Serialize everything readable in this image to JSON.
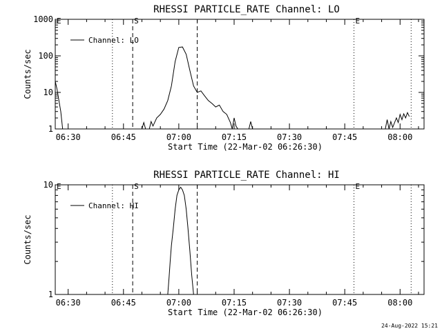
{
  "footer": {
    "date": "24-Aug-2022 15:21"
  },
  "chart_data": [
    {
      "type": "line",
      "title": "RHESSI PARTICLE_RATE Channel: LO",
      "xlabel": "Start Time (22-Mar-02 06:26:30)",
      "ylabel": "Counts/sec",
      "yscale": "log",
      "xlim": [
        "06:26:30",
        "08:06:30"
      ],
      "ylim": [
        1,
        1000
      ],
      "xticks": [
        "06:30",
        "06:45",
        "07:00",
        "07:15",
        "07:30",
        "07:45",
        "08:00"
      ],
      "yticks": [
        {
          "value": 1,
          "label": "1"
        },
        {
          "value": 10,
          "label": "10"
        },
        {
          "value": 100,
          "label": "100"
        },
        {
          "value": 1000,
          "label": "1000"
        }
      ],
      "legend": {
        "label": "Channel: LO",
        "position": "top-left"
      },
      "markers": [
        {
          "time": "06:42:00",
          "style": "dotted",
          "label": ""
        },
        {
          "time": "06:47:30",
          "style": "dashed",
          "label": "S"
        },
        {
          "time": "07:05:00",
          "style": "dashed",
          "label": ""
        },
        {
          "time": "07:47:30",
          "style": "dotted",
          "label": "E"
        },
        {
          "time": "08:03:00",
          "style": "dotted",
          "label": ""
        }
      ],
      "edge_labels": [
        {
          "time": "06:26:30",
          "label": "E"
        }
      ],
      "series": [
        {
          "color": "#000000",
          "points": [
            [
              "06:26:30",
              20
            ],
            [
              "06:27:00",
              12
            ],
            [
              "06:27:30",
              6
            ],
            [
              "06:28:00",
              3
            ],
            [
              "06:28:30",
              1
            ],
            [
              "06:50:00",
              1
            ],
            [
              "06:50:30",
              1.5
            ],
            [
              "06:51:00",
              1
            ],
            [
              "06:52:00",
              1
            ],
            [
              "06:52:30",
              1.6
            ],
            [
              "06:53:00",
              1.2
            ],
            [
              "06:54:00",
              2.0
            ],
            [
              "06:55:00",
              2.5
            ],
            [
              "06:56:00",
              3.5
            ],
            [
              "06:57:00",
              6
            ],
            [
              "06:58:00",
              15
            ],
            [
              "06:59:00",
              70
            ],
            [
              "07:00:00",
              170
            ],
            [
              "07:01:00",
              175
            ],
            [
              "07:02:00",
              110
            ],
            [
              "07:03:00",
              40
            ],
            [
              "07:04:00",
              15
            ],
            [
              "07:05:00",
              10
            ],
            [
              "07:06:00",
              11
            ],
            [
              "07:07:00",
              8
            ],
            [
              "07:08:00",
              6
            ],
            [
              "07:09:00",
              5
            ],
            [
              "07:10:00",
              4
            ],
            [
              "07:11:00",
              4.5
            ],
            [
              "07:12:00",
              3
            ],
            [
              "07:13:00",
              2.5
            ],
            [
              "07:14:00",
              1.5
            ],
            [
              "07:14:30",
              1
            ],
            [
              "07:15:00",
              2
            ],
            [
              "07:15:30",
              1.2
            ],
            [
              "07:16:00",
              1
            ],
            [
              "07:19:00",
              1
            ],
            [
              "07:19:30",
              1.6
            ],
            [
              "07:20:00",
              1
            ],
            [
              "07:56:00",
              1
            ],
            [
              "07:56:30",
              1.8
            ],
            [
              "07:57:00",
              1
            ],
            [
              "07:57:30",
              1.6
            ],
            [
              "07:58:00",
              1.1
            ],
            [
              "07:59:00",
              2.0
            ],
            [
              "07:59:30",
              1.5
            ],
            [
              "08:00:00",
              2.5
            ],
            [
              "08:00:30",
              1.8
            ],
            [
              "08:01:00",
              2.6
            ],
            [
              "08:01:30",
              2.0
            ],
            [
              "08:02:00",
              2.8
            ],
            [
              "08:02:30",
              2.2
            ]
          ]
        }
      ]
    },
    {
      "type": "line",
      "title": "RHESSI PARTICLE_RATE Channel: HI",
      "xlabel": "Start Time (22-Mar-02 06:26:30)",
      "ylabel": "Counts/sec",
      "yscale": "log",
      "xlim": [
        "06:26:30",
        "08:06:30"
      ],
      "ylim": [
        1,
        10
      ],
      "xticks": [
        "06:30",
        "06:45",
        "07:00",
        "07:15",
        "07:30",
        "07:45",
        "08:00"
      ],
      "yticks": [
        {
          "value": 1,
          "label": "1"
        },
        {
          "value": 10,
          "label": "10"
        }
      ],
      "legend": {
        "label": "Channel: HI",
        "position": "top-left"
      },
      "markers": [
        {
          "time": "06:42:00",
          "style": "dotted",
          "label": ""
        },
        {
          "time": "06:47:30",
          "style": "dashed",
          "label": "S"
        },
        {
          "time": "07:05:00",
          "style": "dashed",
          "label": ""
        },
        {
          "time": "07:47:30",
          "style": "dotted",
          "label": "E"
        },
        {
          "time": "08:03:00",
          "style": "dotted",
          "label": ""
        }
      ],
      "edge_labels": [
        {
          "time": "06:26:30",
          "label": "E"
        }
      ],
      "series": [
        {
          "color": "#000000",
          "points": [
            [
              "06:57:00",
              1
            ],
            [
              "06:57:20",
              1.4
            ],
            [
              "06:57:40",
              2.0
            ],
            [
              "06:58:00",
              2.8
            ],
            [
              "06:58:30",
              4
            ],
            [
              "06:59:00",
              6
            ],
            [
              "06:59:30",
              8
            ],
            [
              "07:00:00",
              9
            ],
            [
              "07:00:30",
              9.5
            ],
            [
              "07:01:00",
              9
            ],
            [
              "07:01:30",
              8
            ],
            [
              "07:02:00",
              6
            ],
            [
              "07:02:30",
              4
            ],
            [
              "07:03:00",
              2.5
            ],
            [
              "07:03:30",
              1.5
            ],
            [
              "07:04:00",
              1
            ]
          ]
        }
      ]
    }
  ]
}
